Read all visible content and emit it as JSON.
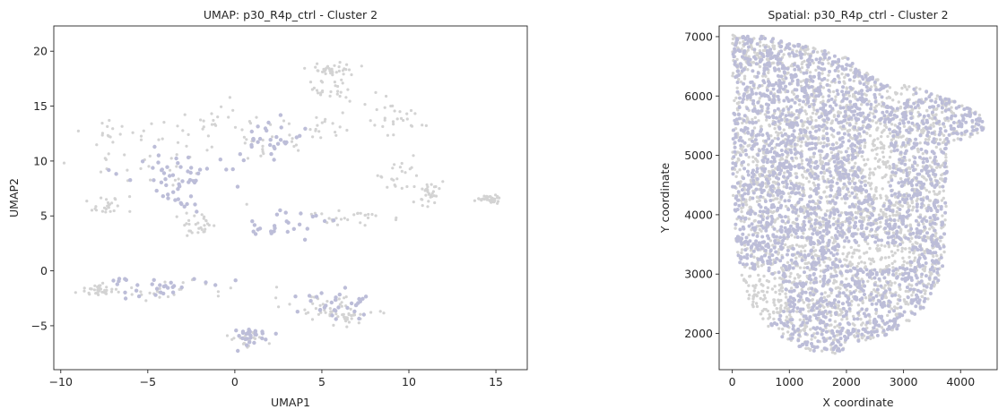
{
  "figure": {
    "background": "#ffffff",
    "colors": {
      "background_points": "#d3d3d3",
      "cluster_points": "#bcbdd8",
      "axes": "#262626"
    }
  },
  "chart_data": [
    {
      "type": "scatter",
      "title": "UMAP: p30_R4p_ctrl - Cluster 2",
      "xlabel": "UMAP1",
      "ylabel": "UMAP2",
      "xlim": [
        -10.4,
        16.8
      ],
      "ylim": [
        -9.0,
        22.3
      ],
      "xticks": [
        -10,
        -5,
        0,
        5,
        10,
        15
      ],
      "yticks": [
        -5,
        0,
        5,
        10,
        15,
        20
      ],
      "grid": false,
      "legend": "none",
      "series": [
        {
          "color": "#d3d3d3",
          "regions": [
            {
              "cx": -3.5,
              "cy": 9.5,
              "rx": 5.5,
              "ry": 3.5
            },
            {
              "cx": -6.5,
              "cy": 12.5,
              "rx": 2.5,
              "ry": 1.5
            },
            {
              "cx": -1.5,
              "cy": 13.5,
              "rx": 2.5,
              "ry": 1.8
            },
            {
              "cx": 2.0,
              "cy": 12.0,
              "rx": 3.0,
              "ry": 2.5
            },
            {
              "cx": 5.5,
              "cy": 13.0,
              "rx": 2.2,
              "ry": 1.8
            },
            {
              "cx": 9.0,
              "cy": 14.0,
              "rx": 2.5,
              "ry": 2.0
            },
            {
              "cx": 5.5,
              "cy": 16.5,
              "rx": 1.5,
              "ry": 1.3
            },
            {
              "cx": 5.5,
              "cy": 18.3,
              "rx": 1.5,
              "ry": 0.8
            },
            {
              "cx": 9.5,
              "cy": 8.5,
              "rx": 1.8,
              "ry": 2.0
            },
            {
              "cx": 11.2,
              "cy": 7.0,
              "rx": 1.1,
              "ry": 1.3
            },
            {
              "cx": -7.5,
              "cy": 6.0,
              "rx": 1.5,
              "ry": 0.9
            },
            {
              "cx": -2.0,
              "cy": 4.0,
              "rx": 1.4,
              "ry": 1.3
            },
            {
              "cx": 7.0,
              "cy": 5.0,
              "rx": 3.0,
              "ry": 0.9
            },
            {
              "cx": 14.6,
              "cy": 6.5,
              "rx": 1.0,
              "ry": 0.35
            },
            {
              "cx": -4.5,
              "cy": -2.0,
              "rx": 4.2,
              "ry": 1.3
            },
            {
              "cx": -8.0,
              "cy": -1.8,
              "rx": 1.2,
              "ry": 0.6
            },
            {
              "cx": 5.0,
              "cy": -3.2,
              "rx": 3.0,
              "ry": 1.4
            },
            {
              "cx": 6.5,
              "cy": -4.2,
              "rx": 1.8,
              "ry": 0.9
            },
            {
              "cx": 0.7,
              "cy": -6.3,
              "rx": 1.4,
              "ry": 1.4
            }
          ]
        },
        {
          "color": "#bcbdd8",
          "regions": [
            {
              "cx": 3.0,
              "cy": 4.2,
              "rx": 3.2,
              "ry": 1.3
            },
            {
              "cx": -3.0,
              "cy": 7.0,
              "rx": 1.6,
              "ry": 1.8
            },
            {
              "cx": -3.0,
              "cy": 9.0,
              "rx": 4.5,
              "ry": 2.5
            },
            {
              "cx": 2.0,
              "cy": 12.0,
              "rx": 3.0,
              "ry": 2.0
            },
            {
              "cx": 5.5,
              "cy": -3.0,
              "rx": 2.5,
              "ry": 1.2
            },
            {
              "cx": -5.0,
              "cy": -1.5,
              "rx": 3.5,
              "ry": 1.0
            },
            {
              "cx": 1.0,
              "cy": -6.0,
              "rx": 1.2,
              "ry": 1.0
            }
          ]
        }
      ]
    },
    {
      "type": "scatter",
      "title": "Spatial: p30_R4p_ctrl - Cluster 2",
      "xlabel": "X coordinate",
      "ylabel": "Y coordinate",
      "xlim": [
        -230,
        4640
      ],
      "ylim": [
        1390,
        7180
      ],
      "xticks": [
        0,
        1000,
        2000,
        3000,
        4000
      ],
      "yticks": [
        2000,
        3000,
        4000,
        5000,
        6000,
        7000
      ],
      "grid": false,
      "legend": "none",
      "outline": [
        [
          0,
          7050
        ],
        [
          600,
          7000
        ],
        [
          1300,
          6850
        ],
        [
          2000,
          6650
        ],
        [
          2600,
          6250
        ],
        [
          3200,
          6150
        ],
        [
          3800,
          5950
        ],
        [
          4300,
          5750
        ],
        [
          4450,
          5450
        ],
        [
          4150,
          5300
        ],
        [
          3800,
          5200
        ],
        [
          3750,
          4500
        ],
        [
          3750,
          3600
        ],
        [
          3650,
          2900
        ],
        [
          3300,
          2350
        ],
        [
          2800,
          2000
        ],
        [
          2200,
          1850
        ],
        [
          1800,
          1650
        ],
        [
          1350,
          1700
        ],
        [
          1100,
          1800
        ],
        [
          700,
          2050
        ],
        [
          350,
          2400
        ],
        [
          150,
          3000
        ],
        [
          60,
          3600
        ],
        [
          0,
          4500
        ],
        [
          0,
          5500
        ],
        [
          0,
          6300
        ]
      ],
      "series": [
        {
          "color": "#d3d3d3",
          "fill": "outline"
        },
        {
          "color": "#bcbdd8",
          "fill": "outline_except",
          "exclude": [
            {
              "cx": 2550,
              "cy": 4900,
              "rx": 250,
              "ry": 700
            },
            {
              "cx": 2500,
              "cy": 3300,
              "rx": 650,
              "ry": 220
            },
            {
              "cx": 450,
              "cy": 2600,
              "rx": 500,
              "ry": 450
            },
            {
              "cx": 2900,
              "cy": 6050,
              "rx": 300,
              "ry": 150
            }
          ]
        }
      ]
    }
  ]
}
